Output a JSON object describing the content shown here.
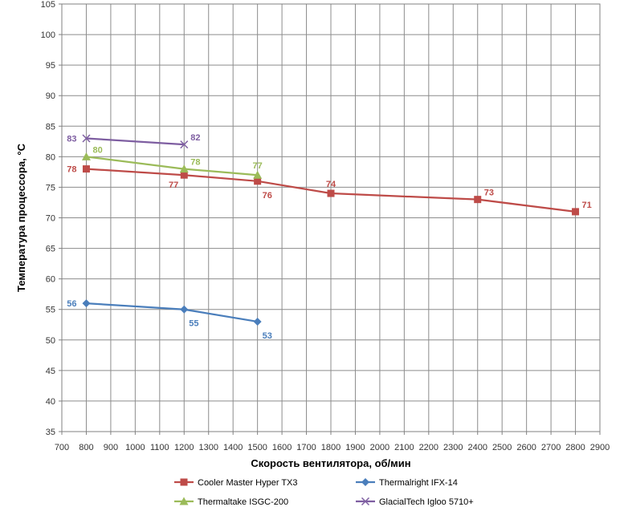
{
  "chart_data": {
    "type": "line",
    "title": "",
    "xlabel": "Скорость вентилятора, об/мин",
    "ylabel": "Температура процессора, °C",
    "xlim": [
      700,
      2900
    ],
    "ylim": [
      35,
      105
    ],
    "x_ticks": [
      700,
      800,
      900,
      1000,
      1100,
      1200,
      1300,
      1400,
      1500,
      1600,
      1700,
      1800,
      1900,
      2000,
      2100,
      2200,
      2300,
      2400,
      2500,
      2600,
      2700,
      2800,
      2900
    ],
    "y_ticks": [
      35,
      40,
      45,
      50,
      55,
      60,
      65,
      70,
      75,
      80,
      85,
      90,
      95,
      100,
      105
    ],
    "grid": true,
    "legend_position": "bottom",
    "series": [
      {
        "name": "Cooler Master Hyper TX3",
        "color": "#be4b48",
        "marker": "square",
        "label_offsets": [
          "left",
          "below-left",
          "below-right",
          "above",
          "above-right",
          "above-right"
        ],
        "points": [
          [
            800,
            78
          ],
          [
            1200,
            77
          ],
          [
            1500,
            76
          ],
          [
            1800,
            74
          ],
          [
            2400,
            73
          ],
          [
            2800,
            71
          ]
        ]
      },
      {
        "name": "Thermalright IFX-14",
        "color": "#4a7ebb",
        "marker": "diamond",
        "label_offsets": [
          "left",
          "below-right",
          "below-right"
        ],
        "points": [
          [
            800,
            56
          ],
          [
            1200,
            55
          ],
          [
            1500,
            53
          ]
        ]
      },
      {
        "name": "Thermaltake ISGC-200",
        "color": "#9bbb59",
        "marker": "triangle",
        "label_offsets": [
          "above-right",
          "above-right",
          "above"
        ],
        "points": [
          [
            800,
            80
          ],
          [
            1200,
            78
          ],
          [
            1500,
            77
          ]
        ]
      },
      {
        "name": "GlacialTech Igloo 5710+",
        "color": "#7e5ea1",
        "marker": "x",
        "label_offsets": [
          "left",
          "above-right"
        ],
        "points": [
          [
            800,
            83
          ],
          [
            1200,
            82
          ]
        ]
      }
    ]
  }
}
